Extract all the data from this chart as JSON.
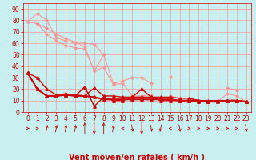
{
  "xlabel": "Vent moyen/en rafales ( km/h )",
  "background_color": "#c8f0f0",
  "grid_color": "#ff9999",
  "x_values": [
    0,
    1,
    2,
    3,
    4,
    5,
    6,
    7,
    8,
    9,
    10,
    11,
    12,
    13,
    14,
    15,
    16,
    17,
    18,
    19,
    20,
    21,
    22,
    23
  ],
  "series": [
    {
      "name": "upper_bound_light",
      "color": "#ff9999",
      "lw": 0.8,
      "marker": "D",
      "ms": 1.8,
      "y": [
        79,
        86,
        80,
        65,
        62,
        60,
        60,
        59,
        50,
        null,
        null,
        null,
        null,
        null,
        null,
        null,
        null,
        null,
        null,
        null,
        null,
        null,
        null,
        null
      ]
    },
    {
      "name": "upper2_light",
      "color": "#ff9999",
      "lw": 0.8,
      "marker": "D",
      "ms": 1.8,
      "y": [
        79,
        77,
        73,
        68,
        64,
        61,
        57,
        36,
        50,
        25,
        27,
        30,
        30,
        25,
        null,
        31,
        null,
        null,
        null,
        null,
        null,
        21,
        19,
        null
      ]
    },
    {
      "name": "lower_light",
      "color": "#ff9999",
      "lw": 0.8,
      "marker": "D",
      "ms": 1.8,
      "y": [
        79,
        77,
        68,
        62,
        58,
        56,
        55,
        36,
        39,
        24,
        25,
        14,
        14,
        15,
        null,
        14,
        12,
        12,
        10,
        9,
        9,
        16,
        14,
        9
      ]
    },
    {
      "name": "dark_upper",
      "color": "#cc0000",
      "lw": 1.0,
      "marker": "^",
      "ms": 2.5,
      "y": [
        34,
        30,
        20,
        15,
        16,
        14,
        22,
        5,
        13,
        10,
        10,
        13,
        20,
        13,
        10,
        10,
        10,
        10,
        9,
        9,
        10,
        10,
        10,
        9
      ]
    },
    {
      "name": "dark_mid",
      "color": "#cc0000",
      "lw": 1.0,
      "marker": "^",
      "ms": 2.5,
      "y": [
        34,
        20,
        14,
        14,
        15,
        15,
        14,
        21,
        14,
        14,
        13,
        13,
        13,
        13,
        13,
        13,
        12,
        12,
        10,
        10,
        10,
        10,
        10,
        9
      ]
    },
    {
      "name": "dark_lower",
      "color": "#cc0000",
      "lw": 1.5,
      "marker": "^",
      "ms": 2.5,
      "y": [
        34,
        20,
        14,
        14,
        15,
        14,
        14,
        13,
        11,
        11,
        11,
        11,
        11,
        11,
        11,
        11,
        10,
        10,
        10,
        9,
        9,
        10,
        10,
        9
      ]
    }
  ],
  "ylim": [
    0,
    95
  ],
  "yticks": [
    0,
    10,
    20,
    30,
    40,
    50,
    60,
    70,
    80,
    90
  ],
  "xlim": [
    -0.5,
    23.5
  ],
  "xticks": [
    0,
    1,
    2,
    3,
    4,
    5,
    6,
    7,
    8,
    9,
    10,
    11,
    12,
    13,
    14,
    15,
    16,
    17,
    18,
    19,
    20,
    21,
    22,
    23
  ],
  "tick_color": "#cc0000",
  "tick_fontsize": 5.5,
  "xlabel_fontsize": 7,
  "xlabel_color": "#cc0000",
  "arrow_color": "#cc0000",
  "wind_arrows": [
    0,
    1,
    2,
    3,
    4,
    5,
    6,
    7,
    8,
    9,
    10,
    11,
    12,
    13,
    14,
    15,
    16,
    17,
    18,
    19,
    20,
    21,
    22,
    23
  ],
  "arrow_directions": [
    0,
    0,
    45,
    45,
    45,
    45,
    90,
    270,
    90,
    45,
    180,
    315,
    270,
    315,
    225,
    180,
    315,
    0,
    0,
    0,
    0,
    0,
    0,
    315
  ]
}
